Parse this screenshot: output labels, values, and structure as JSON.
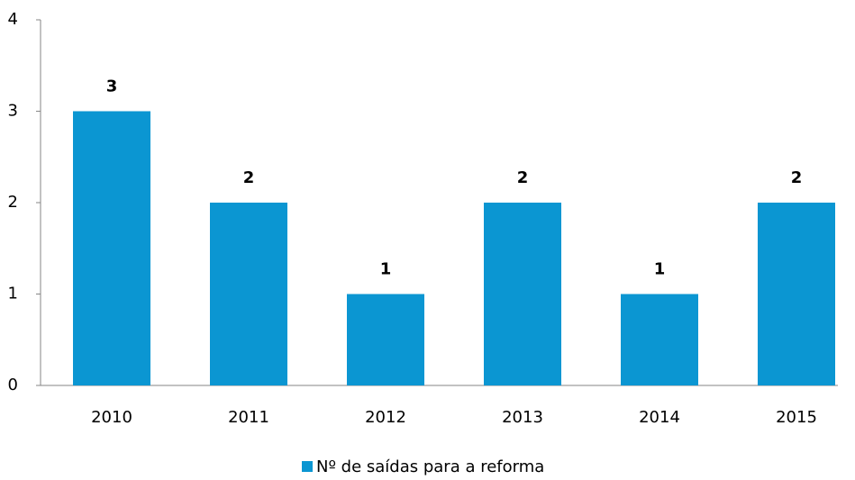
{
  "chart_data": {
    "type": "bar",
    "categories": [
      "2010",
      "2011",
      "2012",
      "2013",
      "2014",
      "2015"
    ],
    "series": [
      {
        "name": "Nº de saídas para a reforma",
        "color": "#0b96d2",
        "values": [
          3,
          2,
          1,
          2,
          1,
          2
        ]
      }
    ],
    "ylim": [
      0,
      4
    ],
    "yticks": [
      0,
      1,
      2,
      3,
      4
    ],
    "grid": false,
    "legend": "bottom"
  }
}
